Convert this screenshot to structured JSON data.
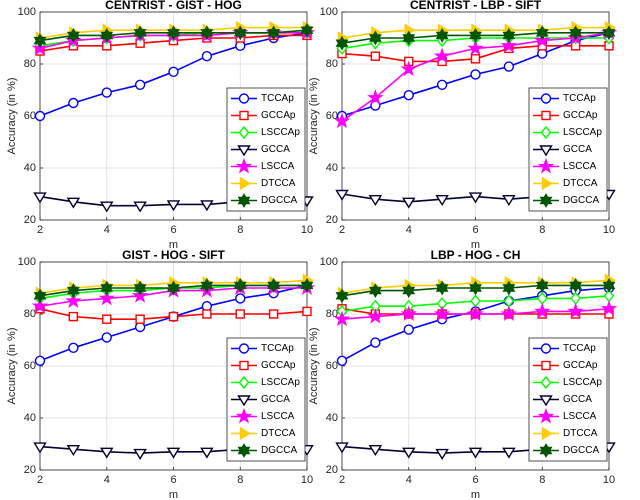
{
  "chart_data": [
    {
      "type": "line",
      "title": "CENTRIST - GIST - HOG",
      "xlabel": "m",
      "ylabel": "Accuracy (in %)",
      "x": [
        2,
        3,
        4,
        5,
        6,
        7,
        8,
        9,
        10
      ],
      "xlim": [
        2,
        10
      ],
      "xticks": [
        2,
        4,
        6,
        8,
        10
      ],
      "ylim": [
        20,
        100
      ],
      "yticks": [
        20,
        40,
        60,
        80,
        100
      ],
      "grid": true,
      "legend": "right",
      "series": [
        {
          "name": "TCCAp",
          "color": "#0000ff",
          "marker": "circle",
          "marker_filled": false,
          "values": [
            60,
            65,
            69,
            72,
            77,
            83,
            87,
            90,
            92
          ]
        },
        {
          "name": "GCCAp",
          "color": "#ff0000",
          "marker": "square",
          "marker_filled": false,
          "values": [
            85,
            87,
            87,
            88,
            89,
            90,
            90,
            91,
            91
          ]
        },
        {
          "name": "LSCCAp",
          "color": "#00ff00",
          "marker": "diamond",
          "marker_filled": false,
          "values": [
            87,
            89,
            90,
            91,
            91,
            92,
            92,
            92,
            92
          ]
        },
        {
          "name": "GCCA",
          "color": "#000033",
          "marker": "triangle-down",
          "marker_filled": false,
          "values": [
            29,
            27,
            25.5,
            25.5,
            26,
            26,
            27,
            27,
            27.5
          ]
        },
        {
          "name": "LSCCA",
          "color": "#ff00ff",
          "marker": "star",
          "marker_filled": true,
          "values": [
            86,
            89,
            90,
            91,
            91,
            91,
            92,
            92,
            92
          ]
        },
        {
          "name": "DTCCA",
          "color": "#ffcc00",
          "marker": "triangle-right",
          "marker_filled": true,
          "values": [
            90,
            92,
            93,
            93,
            93,
            93,
            94,
            94,
            94
          ]
        },
        {
          "name": "DGCCA",
          "color": "#005500",
          "marker": "hexagram",
          "marker_filled": true,
          "values": [
            89,
            91,
            91,
            92,
            92,
            92,
            92,
            92,
            93
          ]
        }
      ]
    },
    {
      "type": "line",
      "title": "CENTRIST - LBP - SIFT",
      "xlabel": "m",
      "ylabel": "Accuracy (in %)",
      "x": [
        2,
        3,
        4,
        5,
        6,
        7,
        8,
        9,
        10
      ],
      "xlim": [
        2,
        10
      ],
      "xticks": [
        2,
        4,
        6,
        8,
        10
      ],
      "ylim": [
        20,
        100
      ],
      "yticks": [
        20,
        40,
        60,
        80,
        100
      ],
      "grid": true,
      "legend": "right",
      "series": [
        {
          "name": "TCCAp",
          "color": "#0000ff",
          "marker": "circle",
          "marker_filled": false,
          "values": [
            60,
            64,
            68,
            72,
            76,
            79,
            84,
            89,
            92
          ]
        },
        {
          "name": "GCCAp",
          "color": "#ff0000",
          "marker": "square",
          "marker_filled": false,
          "values": [
            84,
            83,
            81,
            81,
            82,
            86,
            87,
            87,
            87
          ]
        },
        {
          "name": "LSCCAp",
          "color": "#00ff00",
          "marker": "diamond",
          "marker_filled": false,
          "values": [
            86,
            88,
            89,
            89,
            90,
            90,
            90,
            90,
            90
          ]
        },
        {
          "name": "GCCA",
          "color": "#000033",
          "marker": "triangle-down",
          "marker_filled": false,
          "values": [
            30,
            28,
            27,
            28,
            29,
            28,
            29,
            30,
            30
          ]
        },
        {
          "name": "LSCCA",
          "color": "#ff00ff",
          "marker": "star",
          "marker_filled": true,
          "values": [
            58,
            67,
            78,
            83,
            86,
            87,
            89,
            90,
            92
          ]
        },
        {
          "name": "DTCCA",
          "color": "#ffcc00",
          "marker": "triangle-right",
          "marker_filled": true,
          "values": [
            90,
            92,
            93,
            93,
            93,
            93,
            93,
            94,
            94
          ]
        },
        {
          "name": "DGCCA",
          "color": "#005500",
          "marker": "hexagram",
          "marker_filled": true,
          "values": [
            88,
            90,
            90,
            91,
            91,
            91,
            92,
            92,
            92
          ]
        }
      ]
    },
    {
      "type": "line",
      "title": "GIST - HOG - SIFT",
      "xlabel": "m",
      "ylabel": "Accuracy (in %)",
      "x": [
        2,
        3,
        4,
        5,
        6,
        7,
        8,
        9,
        10
      ],
      "xlim": [
        2,
        10
      ],
      "xticks": [
        2,
        4,
        6,
        8,
        10
      ],
      "ylim": [
        20,
        100
      ],
      "yticks": [
        20,
        40,
        60,
        80,
        100
      ],
      "grid": true,
      "legend": "right",
      "series": [
        {
          "name": "TCCAp",
          "color": "#0000ff",
          "marker": "circle",
          "marker_filled": false,
          "values": [
            62,
            67,
            71,
            75,
            79,
            83,
            86,
            88,
            91
          ]
        },
        {
          "name": "GCCAp",
          "color": "#ff0000",
          "marker": "square",
          "marker_filled": false,
          "values": [
            82,
            79,
            78,
            78,
            79,
            80,
            80,
            80,
            81
          ]
        },
        {
          "name": "LSCCAp",
          "color": "#00ff00",
          "marker": "diamond",
          "marker_filled": false,
          "values": [
            86,
            88,
            89,
            89,
            90,
            90,
            91,
            91,
            91
          ]
        },
        {
          "name": "GCCA",
          "color": "#000033",
          "marker": "triangle-down",
          "marker_filled": false,
          "values": [
            29,
            28,
            27,
            26.5,
            27,
            27,
            28,
            28,
            28
          ]
        },
        {
          "name": "LSCCA",
          "color": "#ff00ff",
          "marker": "star",
          "marker_filled": true,
          "values": [
            83,
            85,
            86,
            87,
            89,
            89,
            90,
            90,
            90
          ]
        },
        {
          "name": "DTCCA",
          "color": "#ffcc00",
          "marker": "triangle-right",
          "marker_filled": true,
          "values": [
            88,
            90,
            91,
            91,
            92,
            92,
            92,
            92,
            93
          ]
        },
        {
          "name": "DGCCA",
          "color": "#005500",
          "marker": "hexagram",
          "marker_filled": true,
          "values": [
            87,
            89,
            90,
            90,
            90,
            91,
            91,
            91,
            91
          ]
        }
      ]
    },
    {
      "type": "line",
      "title": "LBP - HOG - CH",
      "xlabel": "m",
      "ylabel": "Accuracy (in %)",
      "x": [
        2,
        3,
        4,
        5,
        6,
        7,
        8,
        9,
        10
      ],
      "xlim": [
        2,
        10
      ],
      "xticks": [
        2,
        4,
        6,
        8,
        10
      ],
      "ylim": [
        20,
        100
      ],
      "yticks": [
        20,
        40,
        60,
        80,
        100
      ],
      "grid": true,
      "legend": "right",
      "series": [
        {
          "name": "TCCAp",
          "color": "#0000ff",
          "marker": "circle",
          "marker_filled": false,
          "values": [
            62,
            69,
            74,
            78,
            81,
            85,
            87,
            89,
            90
          ]
        },
        {
          "name": "GCCAp",
          "color": "#ff0000",
          "marker": "square",
          "marker_filled": false,
          "values": [
            82,
            80,
            80,
            80,
            80,
            80,
            80,
            80,
            80
          ]
        },
        {
          "name": "LSCCAp",
          "color": "#00ff00",
          "marker": "diamond",
          "marker_filled": false,
          "values": [
            81,
            83,
            83,
            84,
            85,
            85,
            86,
            86,
            87
          ]
        },
        {
          "name": "GCCA",
          "color": "#000033",
          "marker": "triangle-down",
          "marker_filled": false,
          "values": [
            29,
            28,
            27,
            26.5,
            27,
            27,
            28,
            29,
            29
          ]
        },
        {
          "name": "LSCCA",
          "color": "#ff00ff",
          "marker": "star",
          "marker_filled": true,
          "values": [
            78,
            79,
            80,
            80,
            80,
            80,
            81,
            81,
            82
          ]
        },
        {
          "name": "DTCCA",
          "color": "#ffcc00",
          "marker": "triangle-right",
          "marker_filled": true,
          "values": [
            88,
            90,
            91,
            91,
            92,
            92,
            92,
            92,
            93
          ]
        },
        {
          "name": "DGCCA",
          "color": "#005500",
          "marker": "hexagram",
          "marker_filled": true,
          "values": [
            87,
            89,
            89,
            90,
            90,
            90,
            91,
            91,
            91
          ]
        }
      ]
    }
  ]
}
